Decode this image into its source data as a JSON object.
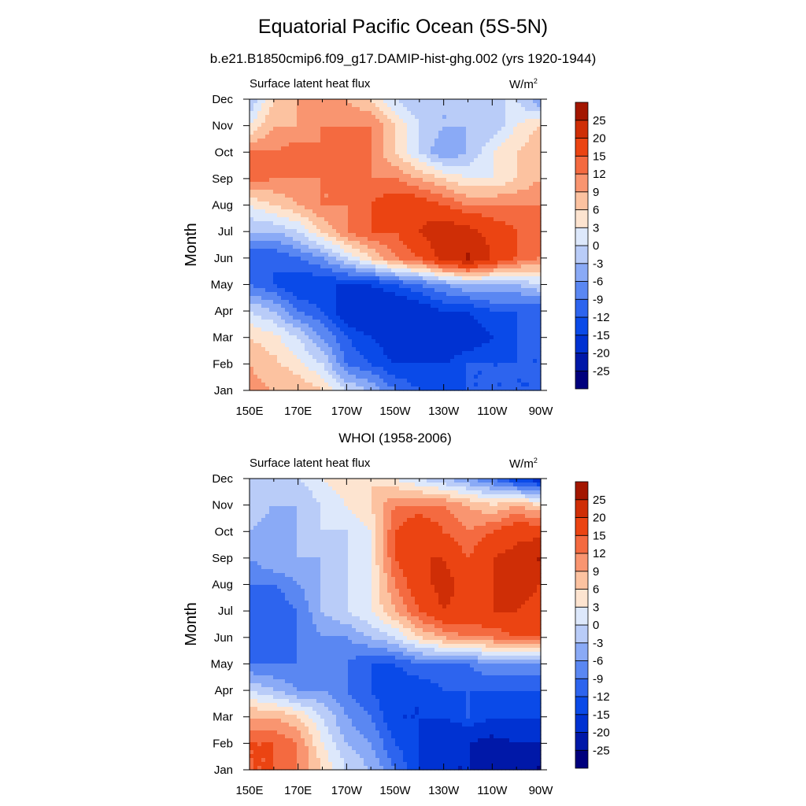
{
  "title": "Equatorial Pacific Ocean (5S-5N)",
  "subtitle": "b.e21.B1850cmip6.f09_g17.DAMIP-hist-ghg.002 (yrs 1920-1944)",
  "colorbar": {
    "levels": [
      -25,
      -20,
      -15,
      -12,
      -9,
      -6,
      -3,
      0,
      3,
      6,
      9,
      12,
      15,
      20,
      25
    ],
    "labels": [
      "-25",
      "-20",
      "-15",
      "-12",
      "-9",
      "-6",
      "-3",
      "0",
      "3",
      "6",
      "9",
      "12",
      "15",
      "20",
      "25"
    ],
    "colors": [
      "#00007d",
      "#0018a8",
      "#0032d2",
      "#0a4ae8",
      "#2d64ee",
      "#5a87f2",
      "#8aaaf6",
      "#b9ccf8",
      "#dde8fb",
      "#fde4d0",
      "#fcc2a0",
      "#f99570",
      "#f46a40",
      "#eb4412",
      "#cf2e06",
      "#a31600"
    ]
  },
  "chart_data": [
    {
      "type": "heatmap",
      "panel_title": "",
      "label_left": "Surface latent heat flux",
      "label_right_unit": "W/m",
      "label_right_sup": "2",
      "xlabel": "",
      "ylabel": "Month",
      "x": [
        150,
        160,
        170,
        180,
        190,
        200,
        210,
        220,
        230,
        240,
        250,
        260,
        270
      ],
      "x_ticks": [
        "150E",
        "170E",
        "170W",
        "150W",
        "130W",
        "110W",
        "90W"
      ],
      "x_tick_values": [
        150,
        170,
        190,
        210,
        230,
        250,
        270
      ],
      "y": [
        "Jan",
        "Feb",
        "Mar",
        "Apr",
        "May",
        "Jun",
        "Jul",
        "Aug",
        "Sep",
        "Oct",
        "Nov",
        "Dec"
      ],
      "xlim": [
        150,
        270
      ],
      "ylim": [
        1,
        12
      ],
      "z": [
        [
          10,
          9,
          9,
          6,
          0,
          -3,
          -9,
          -12,
          -12,
          -12,
          -12,
          -12,
          -12
        ],
        [
          9,
          7,
          4,
          0,
          -9,
          -12,
          -15,
          -15,
          -15,
          -12,
          -12,
          -12,
          -12
        ],
        [
          6,
          4,
          0,
          -6,
          -12,
          -15,
          -18,
          -20,
          -20,
          -18,
          -15,
          -12,
          -12
        ],
        [
          0,
          -3,
          -9,
          -12,
          -18,
          -20,
          -20,
          -18,
          -15,
          -15,
          -12,
          -12,
          -12
        ],
        [
          -9,
          -12,
          -15,
          -15,
          -15,
          -15,
          -12,
          -9,
          -6,
          -3,
          -3,
          -3,
          0
        ],
        [
          -12,
          -12,
          -9,
          -6,
          0,
          6,
          12,
          15,
          22,
          26,
          20,
          15,
          12
        ],
        [
          -3,
          -3,
          0,
          6,
          12,
          15,
          15,
          20,
          24,
          22,
          18,
          15,
          12
        ],
        [
          3,
          6,
          9,
          12,
          12,
          15,
          18,
          18,
          15,
          12,
          12,
          12,
          12
        ],
        [
          14,
          12,
          12,
          12,
          12,
          12,
          12,
          9,
          6,
          3,
          3,
          6,
          9
        ],
        [
          12,
          12,
          14,
          12,
          14,
          12,
          6,
          0,
          -6,
          -3,
          3,
          6,
          9
        ],
        [
          3,
          9,
          9,
          12,
          12,
          12,
          6,
          0,
          -3,
          -3,
          -3,
          3,
          6
        ],
        [
          -3,
          6,
          9,
          9,
          9,
          6,
          0,
          -3,
          -3,
          -3,
          0,
          0,
          -6
        ]
      ]
    },
    {
      "type": "heatmap",
      "panel_title": "WHOI (1958-2006)",
      "label_left": "Surface latent heat flux",
      "label_right_unit": "W/m",
      "label_right_sup": "2",
      "xlabel": "",
      "ylabel": "Month",
      "x": [
        150,
        160,
        170,
        180,
        190,
        200,
        210,
        220,
        230,
        240,
        250,
        260,
        270
      ],
      "x_ticks": [
        "150E",
        "170E",
        "170W",
        "150W",
        "130W",
        "110W",
        "90W"
      ],
      "x_tick_values": [
        150,
        170,
        190,
        210,
        230,
        250,
        270
      ],
      "y": [
        "Jan",
        "Feb",
        "Mar",
        "Apr",
        "May",
        "Jun",
        "Jul",
        "Aug",
        "Sep",
        "Oct",
        "Nov",
        "Dec"
      ],
      "xlim": [
        150,
        270
      ],
      "ylim": [
        1,
        12
      ],
      "z": [
        [
          15,
          15,
          12,
          6,
          0,
          -3,
          -9,
          -15,
          -20,
          -20,
          -20,
          -22,
          -26
        ],
        [
          15,
          15,
          12,
          3,
          -3,
          -6,
          -12,
          -15,
          -20,
          -20,
          -22,
          -20,
          -20
        ],
        [
          9,
          9,
          6,
          0,
          -6,
          -9,
          -15,
          -15,
          -15,
          -12,
          -15,
          -15,
          -15
        ],
        [
          0,
          -3,
          -6,
          -6,
          -9,
          -12,
          -15,
          -15,
          -12,
          -12,
          -12,
          -12,
          -12
        ],
        [
          -9,
          -9,
          -9,
          -9,
          -9,
          -12,
          -12,
          -9,
          -9,
          -9,
          -6,
          -6,
          -6
        ],
        [
          -12,
          -12,
          -9,
          -6,
          -6,
          -3,
          0,
          6,
          9,
          12,
          12,
          15,
          15
        ],
        [
          -12,
          -12,
          -9,
          -3,
          0,
          3,
          9,
          15,
          20,
          18,
          20,
          20,
          18
        ],
        [
          -9,
          -9,
          -6,
          -3,
          0,
          3,
          12,
          18,
          22,
          18,
          20,
          22,
          20
        ],
        [
          -6,
          -3,
          -3,
          -3,
          0,
          3,
          15,
          20,
          20,
          15,
          20,
          22,
          26
        ],
        [
          -3,
          -6,
          -3,
          0,
          0,
          3,
          15,
          20,
          15,
          12,
          15,
          18,
          18
        ],
        [
          0,
          -3,
          -3,
          0,
          3,
          6,
          12,
          12,
          12,
          9,
          6,
          9,
          6
        ],
        [
          0,
          0,
          0,
          3,
          6,
          6,
          3,
          0,
          -3,
          -6,
          -9,
          -15,
          -18
        ]
      ]
    }
  ]
}
